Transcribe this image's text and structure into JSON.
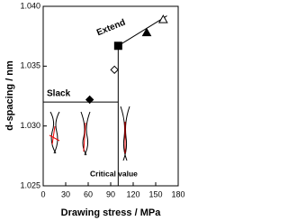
{
  "chart_data": {
    "type": "scatter",
    "x_label": "Drawing stress / MPa",
    "y_label": "d-spacing / nm",
    "xlim": [
      0,
      180
    ],
    "xticks": [
      0,
      30,
      60,
      90,
      120,
      150,
      180
    ],
    "ylim": [
      1.025,
      1.04
    ],
    "yticks": [
      1.025,
      {
        "value": 1.03,
        "label": "1.030"
      },
      1.035,
      {
        "value": 1.04,
        "label": "1.040"
      }
    ],
    "points": [
      {
        "x": 62,
        "y": 1.0322,
        "marker": "diamond",
        "filled": true
      },
      {
        "x": 95,
        "y": 1.0347,
        "marker": "diamond",
        "filled": false
      },
      {
        "x": 100,
        "y": 1.0367,
        "marker": "square",
        "filled": true
      },
      {
        "x": 138,
        "y": 1.0378,
        "marker": "triangle",
        "filled": true
      },
      {
        "x": 160,
        "y": 1.0389,
        "marker": "triangle",
        "filled": false
      }
    ],
    "lines": [
      {
        "x": [
          0,
          100
        ],
        "values": [
          1.032,
          1.032
        ]
      },
      {
        "x": [
          100,
          100
        ],
        "values": [
          1.025,
          1.0367
        ]
      },
      {
        "x": [
          100,
          165
        ],
        "values": [
          1.0367,
          1.0392
        ]
      }
    ],
    "annotations": [
      "Slack",
      "Extend",
      "Critical value"
    ],
    "color": "#000000"
  }
}
